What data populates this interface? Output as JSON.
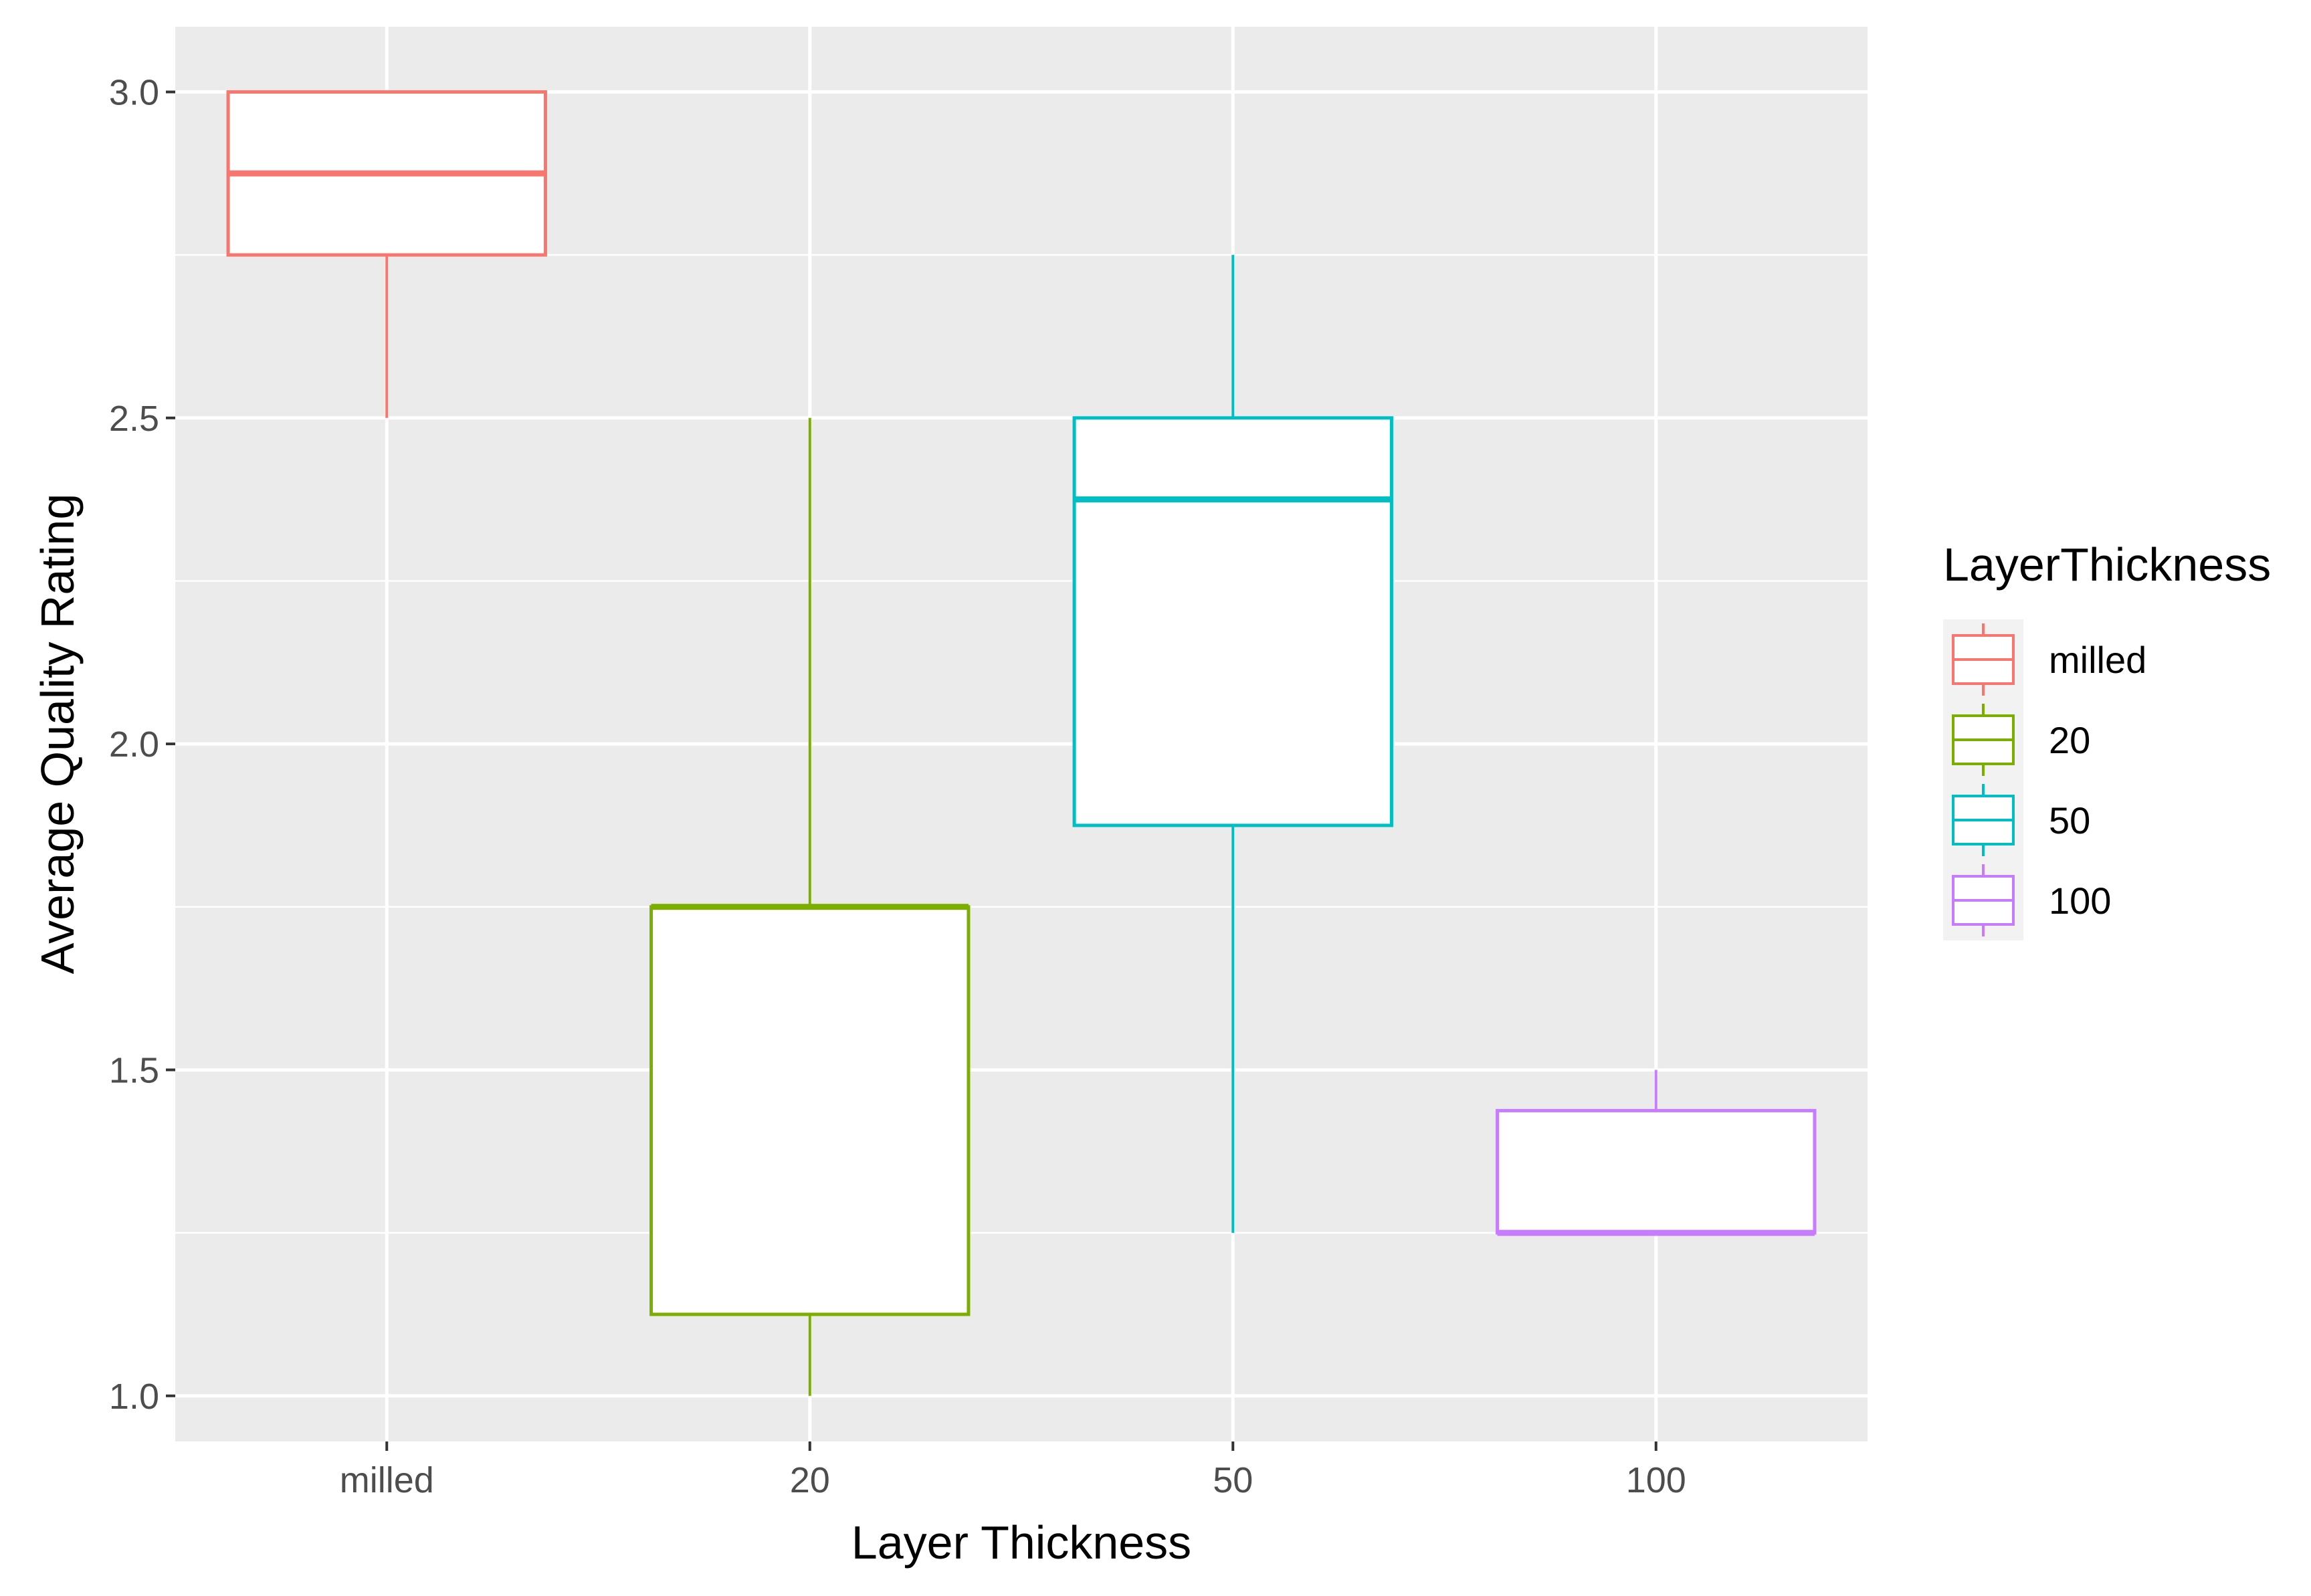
{
  "chart_data": {
    "type": "box",
    "title": "",
    "xlabel": "Layer Thickness",
    "ylabel": "Average Quality Rating",
    "categories": [
      "milled",
      "20",
      "50",
      "100"
    ],
    "ylim": [
      0.93,
      3.1
    ],
    "yticks": [
      1.0,
      1.5,
      2.0,
      2.5,
      3.0
    ],
    "ytick_labels": [
      "1.0",
      "1.5",
      "2.0",
      "2.5",
      "3.0"
    ],
    "grid": true,
    "legend": {
      "title": "LayerThickness",
      "placement": "right",
      "entries": [
        "milled",
        "20",
        "50",
        "100"
      ]
    },
    "series": [
      {
        "category": "milled",
        "color": "#F8766D",
        "whisker_low": 2.5,
        "q1": 2.75,
        "median": 2.875,
        "q3": 3.0,
        "whisker_high": 3.0
      },
      {
        "category": "20",
        "color": "#7CAE00",
        "whisker_low": 1.0,
        "q1": 1.125,
        "median": 1.75,
        "q3": 1.75,
        "whisker_high": 2.5
      },
      {
        "category": "50",
        "color": "#00BFC4",
        "whisker_low": 1.25,
        "q1": 1.875,
        "median": 2.375,
        "q3": 2.5,
        "whisker_high": 2.75
      },
      {
        "category": "100",
        "color": "#C77CFF",
        "whisker_low": 1.25,
        "q1": 1.25,
        "median": 1.25,
        "q3": 1.4375,
        "whisker_high": 1.5
      }
    ],
    "colors": {
      "panel_background": "#EBEBEB",
      "grid": "#FFFFFF"
    }
  }
}
